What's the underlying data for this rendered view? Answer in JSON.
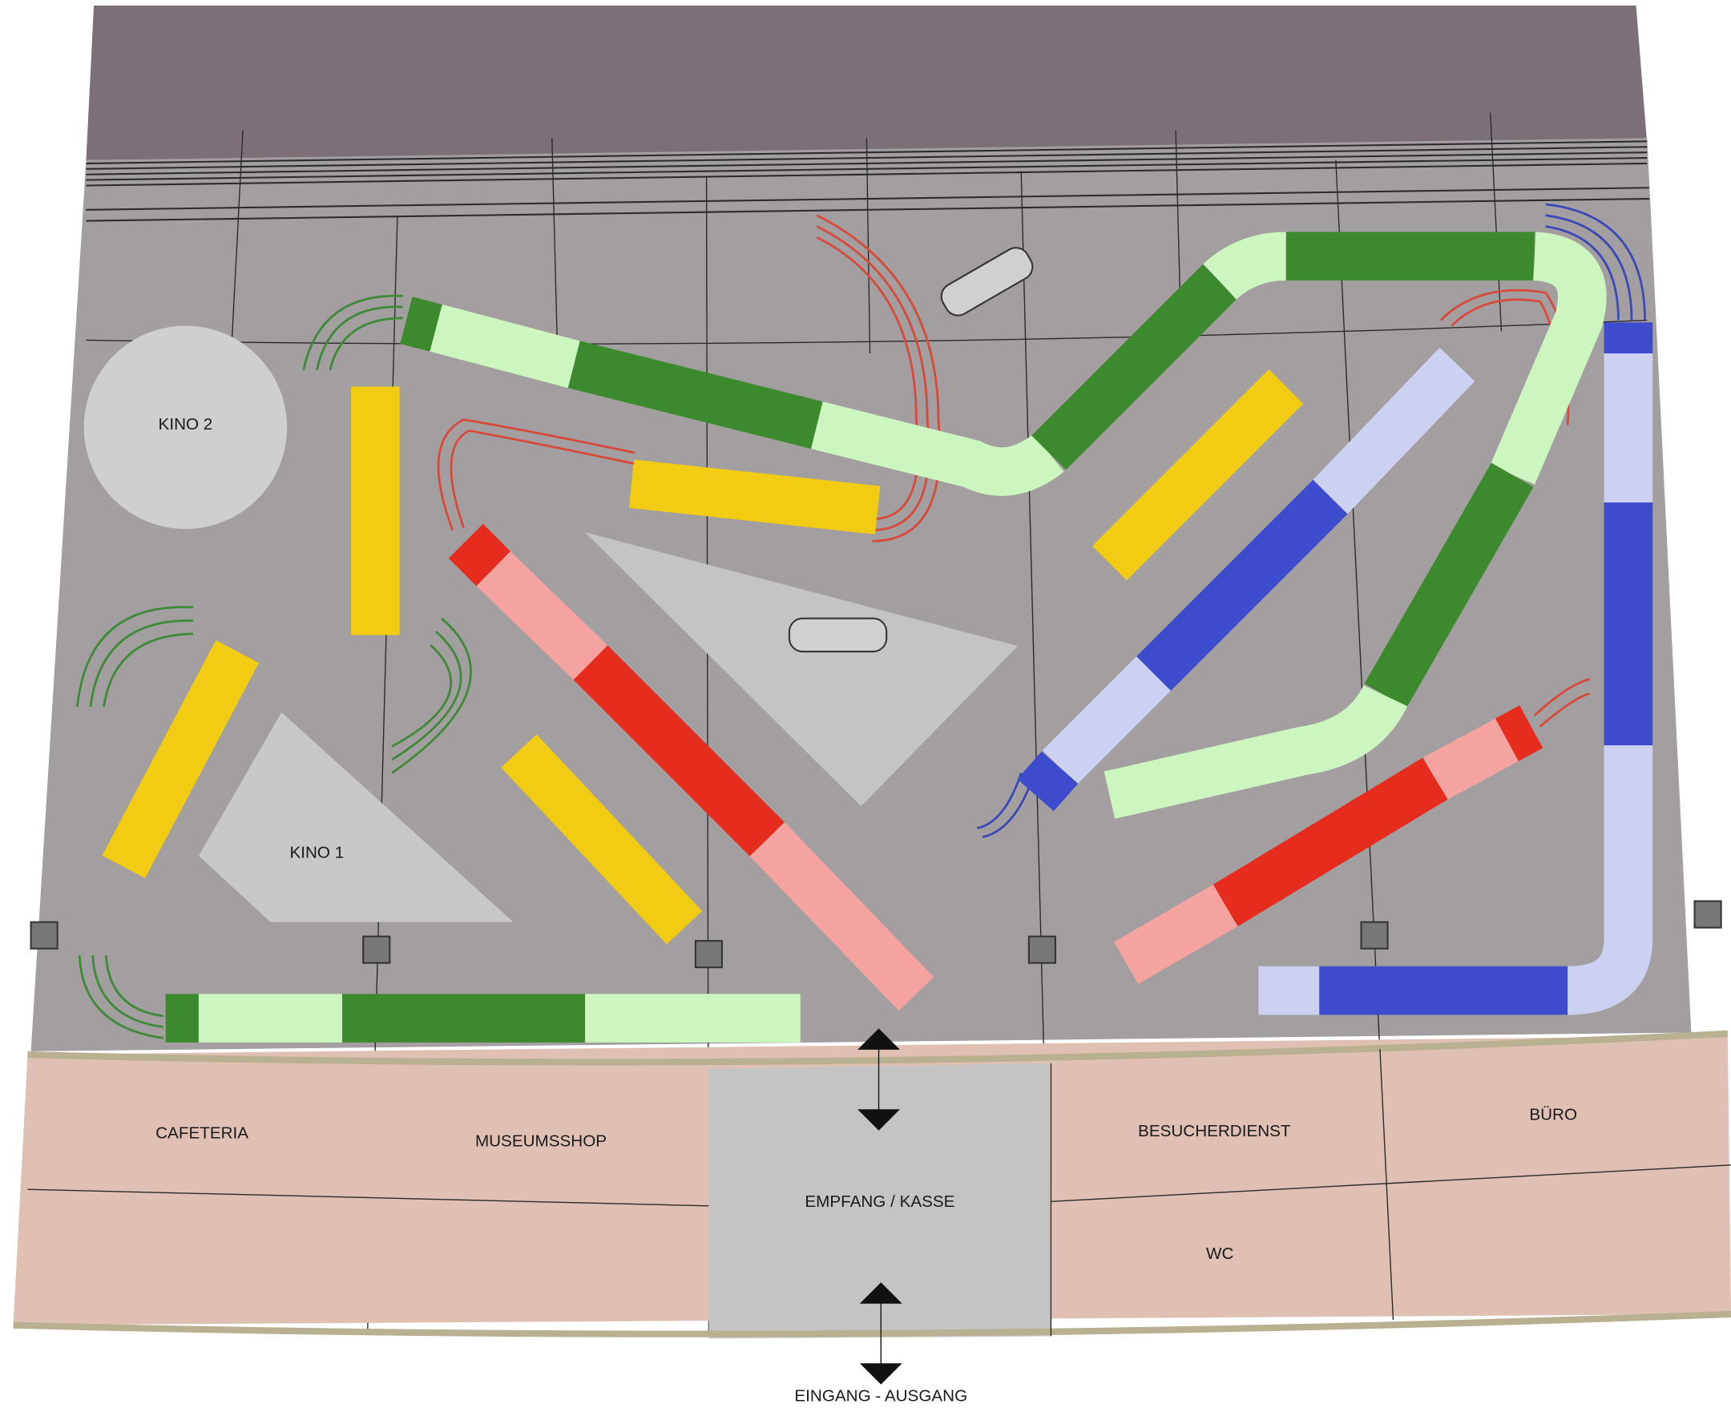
{
  "cinemas": [
    "KINO 2",
    "KINO 1"
  ],
  "rooms": [
    "CAFETERIA",
    "MUSEUMSSHOP",
    "EMPFANG /  KASSE",
    "BESUCHERDIENST",
    "BÜRO",
    "WC"
  ],
  "entrance": "EINGANG -  AUSGANG"
}
